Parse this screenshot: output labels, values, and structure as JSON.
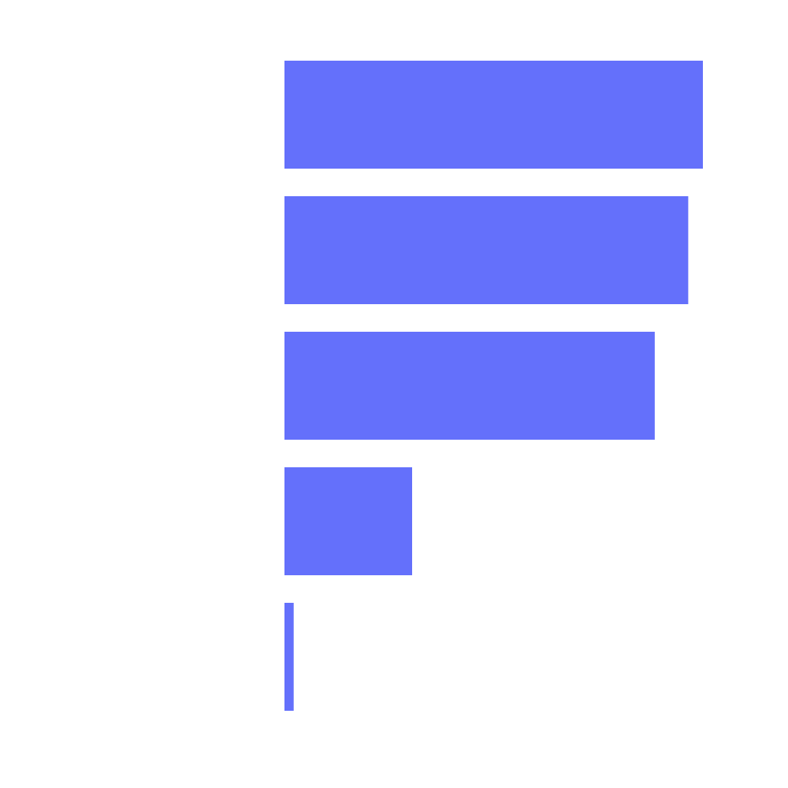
{
  "chart_data": {
    "type": "bar",
    "orientation": "horizontal",
    "categories": [
      "",
      "",
      "",
      "",
      ""
    ],
    "values": [
      100,
      96.5,
      88.5,
      30.5,
      2.2
    ],
    "xlim": [
      0,
      100
    ],
    "grid": false,
    "axes_visible": false,
    "legend": "none",
    "bar_color": "#6470fb"
  }
}
